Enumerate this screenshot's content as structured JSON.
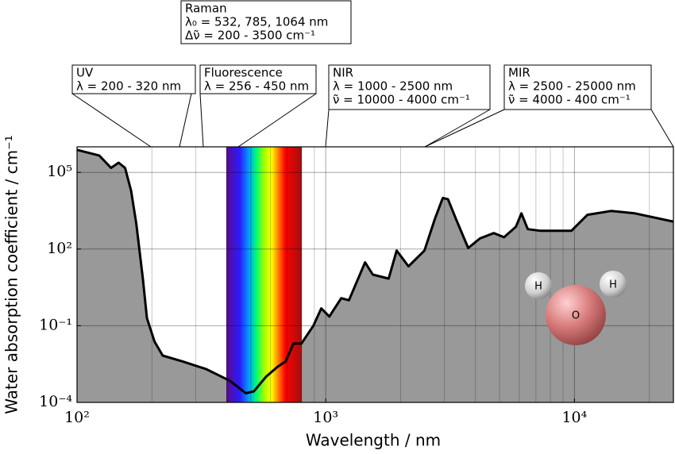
{
  "chart_data": {
    "type": "area",
    "x_label": "Wavelength / nm",
    "y_label": "Water absorption coefficient / cm⁻¹",
    "x": [
      100,
      122.8,
      137,
      147,
      156,
      165,
      173,
      184,
      191,
      205,
      221,
      266,
      331,
      412,
      477,
      514,
      575,
      641,
      690,
      742,
      798,
      892,
      960,
      1034,
      1154,
      1240,
      1439,
      1547,
      1790,
      1928,
      2151,
      2495,
      2747,
      2955,
      3100,
      3340,
      3740,
      4170,
      4740,
      5210,
      5820,
      6120,
      6490,
      7260,
      8400,
      9730,
      11280,
      14040,
      17490,
      24900
    ],
    "values": [
      760000,
      460000,
      150000,
      240000,
      150000,
      19000,
      1000,
      7,
      0.2,
      0.024,
      0.0068,
      0.004,
      0.002,
      0.0007,
      0.00023,
      0.00027,
      0.001,
      0.0025,
      0.004,
      0.02,
      0.02,
      0.1,
      0.48,
      0.23,
      1.2,
      0.99,
      30,
      10,
      7,
      87,
      21,
      87,
      1500,
      10000,
      9000,
      1500,
      110,
      260,
      420,
      290,
      750,
      2500,
      600,
      520,
      520,
      520,
      2200,
      3100,
      2500,
      1200
    ],
    "color": "#999999",
    "line_color": "#000000",
    "log_x": true,
    "log_y": true,
    "xlim": [
      100,
      25000
    ],
    "ylim": [
      0.0001,
      1000000
    ],
    "xticks": [
      {
        "value": 100,
        "label": "10²"
      },
      {
        "value": 1000,
        "label": "10³"
      },
      {
        "value": 10000,
        "label": "10⁴"
      }
    ],
    "xminorticks": [
      200,
      300,
      400,
      500,
      600,
      700,
      800,
      900,
      2000,
      3000,
      4000,
      5000,
      6000,
      7000,
      8000,
      9000,
      20000
    ],
    "yticks": [
      {
        "value": 0.0001,
        "label": "10⁻⁴"
      },
      {
        "value": 0.1,
        "label": "10⁻¹"
      },
      {
        "value": 100,
        "label": "10²"
      },
      {
        "value": 100000,
        "label": "10⁵"
      }
    ],
    "grid": true,
    "annotations": [
      {
        "lines": [
          "Raman",
          "λ₀ = 532, 785, 1064 nm",
          "Δν̃ = 200 - 3500 cm⁻¹"
        ]
      },
      {
        "lines": [
          "UV",
          "λ = 200 - 320 nm"
        ]
      },
      {
        "lines": [
          "Fluorescence",
          "λ = 256 - 450 nm"
        ]
      },
      {
        "lines": [
          "NIR",
          "λ = 1000 - 2500 nm",
          "ν̃ = 10000 - 4000 cm⁻¹"
        ]
      },
      {
        "lines": [
          "MIR",
          "λ = 2500 - 25000 nm",
          "ν̃ = 4000 - 400 cm⁻¹"
        ]
      }
    ],
    "molecule_labels": [
      "H",
      "H",
      "O"
    ]
  }
}
